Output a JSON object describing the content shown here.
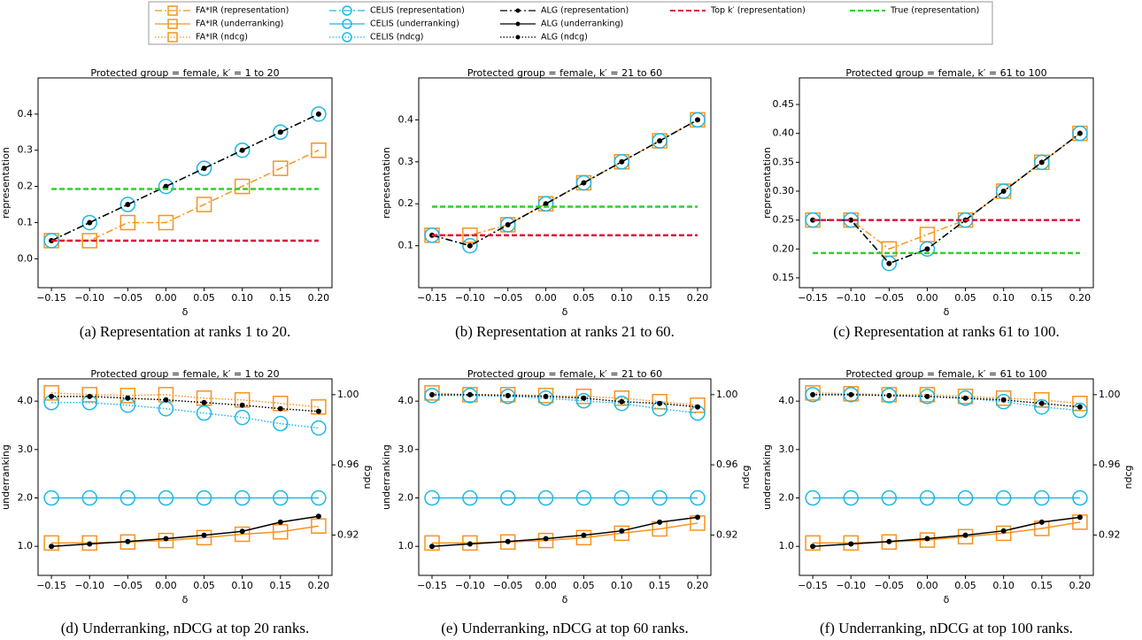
{
  "chart_data": [
    {
      "type": "line",
      "title": "Protected group = female, k′ = 1 to 20",
      "caption": "(a) Representation at ranks 1 to 20.",
      "xlabel": "δ",
      "ylabel": "representation",
      "x": [
        -0.15,
        -0.1,
        -0.05,
        0,
        0.05,
        0.1,
        0.15,
        0.2
      ],
      "xlim": [
        -0.1675,
        0.2175
      ],
      "xticks": [
        {
          "value": -0.15,
          "label": "−0.15"
        },
        {
          "value": -0.1,
          "label": "−0.10"
        },
        {
          "value": -0.05,
          "label": "−0.05"
        },
        {
          "value": 0,
          "label": "0.00"
        },
        0.05,
        {
          "value": 0.1,
          "label": "0.10"
        },
        0.15,
        {
          "value": 0.2,
          "label": "0.20"
        }
      ],
      "ylim": [
        -0.08,
        0.5
      ],
      "yticks": [
        {
          "value": 0,
          "label": "0.0"
        },
        0.1,
        0.2,
        0.3,
        0.4
      ],
      "series": [
        {
          "name": "FA*IR (representation)",
          "color": "#f7931e",
          "linestyle": "dashdot",
          "marker": "square",
          "values": [
            0.05,
            0.05,
            0.1,
            0.1,
            0.15,
            0.2,
            0.25,
            0.3
          ]
        },
        {
          "name": "CELIS (representation)",
          "color": "#1cb8e8",
          "linestyle": "dashdot",
          "marker": "circle",
          "values": [
            0.05,
            0.1,
            0.15,
            0.2,
            0.25,
            0.3,
            0.35,
            0.4
          ]
        },
        {
          "name": "ALG (representation)",
          "color": "#000000",
          "linestyle": "dashdot",
          "marker": "dot",
          "values": [
            0.05,
            0.1,
            0.15,
            0.2,
            0.25,
            0.3,
            0.35,
            0.4
          ]
        },
        {
          "name": "Top k′ (representation)",
          "color": "#dc143c",
          "linestyle": "dashed",
          "marker": "none",
          "values": [
            0.05,
            0.05,
            0.05,
            0.05,
            0.05,
            0.05,
            0.05,
            0.05
          ]
        },
        {
          "name": "True (representation)",
          "color": "#32cd32",
          "linestyle": "dashed",
          "marker": "none",
          "values": [
            0.193,
            0.193,
            0.193,
            0.193,
            0.193,
            0.193,
            0.193,
            0.193
          ]
        }
      ]
    },
    {
      "type": "line",
      "title": "Protected group = female, k′ = 21 to 60",
      "caption": "(b) Representation at ranks 21 to 60.",
      "xlabel": "δ",
      "ylabel": "representation",
      "x": [
        -0.15,
        -0.1,
        -0.05,
        0,
        0.05,
        0.1,
        0.15,
        0.2
      ],
      "xlim": [
        -0.1675,
        0.2175
      ],
      "xticks": [
        {
          "value": -0.15,
          "label": "−0.15"
        },
        {
          "value": -0.1,
          "label": "−0.10"
        },
        {
          "value": -0.05,
          "label": "−0.05"
        },
        {
          "value": 0,
          "label": "0.00"
        },
        0.05,
        {
          "value": 0.1,
          "label": "0.10"
        },
        0.15,
        {
          "value": 0.2,
          "label": "0.20"
        }
      ],
      "ylim": [
        0,
        0.5
      ],
      "yticks": [
        0.1,
        0.2,
        0.3,
        0.4
      ],
      "series": [
        {
          "color": "#f7931e",
          "linestyle": "dashdot",
          "marker": "square",
          "values": [
            0.125,
            0.125,
            0.15,
            0.2,
            0.25,
            0.3,
            0.35,
            0.4
          ]
        },
        {
          "color": "#1cb8e8",
          "linestyle": "dashdot",
          "marker": "circle",
          "values": [
            0.125,
            0.1,
            0.15,
            0.2,
            0.25,
            0.3,
            0.35,
            0.4
          ]
        },
        {
          "color": "#000000",
          "linestyle": "dashdot",
          "marker": "dot",
          "values": [
            0.125,
            0.1,
            0.15,
            0.2,
            0.25,
            0.3,
            0.35,
            0.4
          ]
        },
        {
          "color": "#dc143c",
          "linestyle": "dashed",
          "marker": "none",
          "values": [
            0.125,
            0.125,
            0.125,
            0.125,
            0.125,
            0.125,
            0.125,
            0.125
          ]
        },
        {
          "color": "#32cd32",
          "linestyle": "dashed",
          "marker": "none",
          "values": [
            0.193,
            0.193,
            0.193,
            0.193,
            0.193,
            0.193,
            0.193,
            0.193
          ]
        }
      ]
    },
    {
      "type": "line",
      "title": "Protected group = female, k′ = 61 to 100",
      "caption": "(c) Representation at ranks 61 to 100.",
      "xlabel": "δ",
      "ylabel": "representation",
      "x": [
        -0.15,
        -0.1,
        -0.05,
        0,
        0.05,
        0.1,
        0.15,
        0.2
      ],
      "xlim": [
        -0.1675,
        0.2175
      ],
      "xticks": [
        {
          "value": -0.15,
          "label": "−0.15"
        },
        {
          "value": -0.1,
          "label": "−0.10"
        },
        {
          "value": -0.05,
          "label": "−0.05"
        },
        {
          "value": 0,
          "label": "0.00"
        },
        0.05,
        {
          "value": 0.1,
          "label": "0.10"
        },
        0.15,
        {
          "value": 0.2,
          "label": "0.20"
        }
      ],
      "ylim": [
        0.133,
        0.496
      ],
      "yticks": [
        0.15,
        {
          "value": 0.2,
          "label": "0.20"
        },
        0.25,
        {
          "value": 0.3,
          "label": "0.30"
        },
        0.35,
        {
          "value": 0.4,
          "label": "0.40"
        },
        0.45
      ],
      "series": [
        {
          "color": "#f7931e",
          "linestyle": "dashdot",
          "marker": "square",
          "values": [
            0.25,
            0.25,
            0.2,
            0.225,
            0.25,
            0.3,
            0.35,
            0.4
          ]
        },
        {
          "color": "#1cb8e8",
          "linestyle": "dashdot",
          "marker": "circle",
          "values": [
            0.25,
            0.25,
            0.175,
            0.2,
            0.25,
            0.3,
            0.35,
            0.4
          ]
        },
        {
          "color": "#000000",
          "linestyle": "dashdot",
          "marker": "dot",
          "values": [
            0.25,
            0.25,
            0.175,
            0.2,
            0.25,
            0.3,
            0.35,
            0.4
          ]
        },
        {
          "color": "#dc143c",
          "linestyle": "dashed",
          "marker": "none",
          "values": [
            0.25,
            0.25,
            0.25,
            0.25,
            0.25,
            0.25,
            0.25,
            0.25
          ]
        },
        {
          "color": "#32cd32",
          "linestyle": "dashed",
          "marker": "none",
          "values": [
            0.193,
            0.193,
            0.193,
            0.193,
            0.193,
            0.193,
            0.193,
            0.193
          ]
        }
      ]
    },
    {
      "type": "line",
      "title": "Protected group = female, k′ = 1 to 20",
      "caption": "(d) Underranking, nDCG at top 20 ranks.",
      "xlabel": "δ",
      "ylabel": "underranking",
      "y2label": "ndcg",
      "x": [
        -0.15,
        -0.1,
        -0.05,
        0,
        0.05,
        0.1,
        0.15,
        0.2
      ],
      "xlim": [
        -0.1675,
        0.2175
      ],
      "xticks": [
        {
          "value": -0.15,
          "label": "−0.15"
        },
        {
          "value": -0.1,
          "label": "−0.10"
        },
        {
          "value": -0.05,
          "label": "−0.05"
        },
        {
          "value": 0,
          "label": "0.00"
        },
        0.05,
        {
          "value": 0.1,
          "label": "0.10"
        },
        0.15,
        {
          "value": 0.2,
          "label": "0.20"
        }
      ],
      "ylim": [
        0.4,
        4.46
      ],
      "yticks": [
        {
          "value": 1,
          "label": "1.0"
        },
        {
          "value": 2,
          "label": "2.0"
        },
        {
          "value": 3,
          "label": "3.0"
        },
        {
          "value": 4,
          "label": "4.0"
        }
      ],
      "y2lim": [
        0.897,
        1.009
      ],
      "y2ticks": [
        0.92,
        0.96,
        {
          "value": 1,
          "label": "1.00"
        }
      ],
      "series": [
        {
          "name": "FA*IR (underranking)",
          "color": "#f7931e",
          "linestyle": "solid",
          "marker": "square",
          "values": [
            1.07,
            1.07,
            1.09,
            1.12,
            1.18,
            1.25,
            1.3,
            1.42
          ]
        },
        {
          "name": "CELIS (underranking)",
          "color": "#1cb8e8",
          "linestyle": "solid",
          "marker": "circle",
          "values": [
            2,
            2,
            2,
            2,
            2,
            2,
            2,
            2
          ]
        },
        {
          "name": "ALG (underranking)",
          "color": "#000000",
          "linestyle": "solid",
          "marker": "dot",
          "values": [
            1,
            1.05,
            1.1,
            1.16,
            1.23,
            1.31,
            1.5,
            1.62
          ]
        },
        {
          "name": "FA*IR (ndcg)",
          "color": "#f7931e",
          "linestyle": "dotted",
          "marker": "square",
          "axis": "y2",
          "values": [
            1.001,
            1,
            0.9995,
            1,
            0.998,
            0.997,
            0.995,
            0.993
          ]
        },
        {
          "name": "CELIS (ndcg)",
          "color": "#1cb8e8",
          "linestyle": "dotted",
          "marker": "circle",
          "axis": "y2",
          "values": [
            0.9955,
            0.9955,
            0.994,
            0.992,
            0.9895,
            0.987,
            0.9835,
            0.981
          ]
        },
        {
          "name": "ALG (ndcg)",
          "color": "#000000",
          "linestyle": "dotted",
          "marker": "dot",
          "axis": "y2",
          "values": [
            0.999,
            0.999,
            0.998,
            0.997,
            0.9955,
            0.994,
            0.992,
            0.9905
          ]
        }
      ]
    },
    {
      "type": "line",
      "title": "Protected group = female, k′ = 21 to 60",
      "caption": "(e) Underranking, nDCG at top 60 ranks.",
      "xlabel": "δ",
      "ylabel": "underranking",
      "y2label": "ndcg",
      "x": [
        -0.15,
        -0.1,
        -0.05,
        0,
        0.05,
        0.1,
        0.15,
        0.2
      ],
      "xlim": [
        -0.1675,
        0.2175
      ],
      "xticks": [
        {
          "value": -0.15,
          "label": "−0.15"
        },
        {
          "value": -0.1,
          "label": "−0.10"
        },
        {
          "value": -0.05,
          "label": "−0.05"
        },
        {
          "value": 0,
          "label": "0.00"
        },
        0.05,
        {
          "value": 0.1,
          "label": "0.10"
        },
        0.15,
        {
          "value": 0.2,
          "label": "0.20"
        }
      ],
      "ylim": [
        0.4,
        4.46
      ],
      "yticks": [
        {
          "value": 1,
          "label": "1.0"
        },
        {
          "value": 2,
          "label": "2.0"
        },
        {
          "value": 3,
          "label": "3.0"
        },
        {
          "value": 4,
          "label": "4.0"
        }
      ],
      "y2lim": [
        0.897,
        1.009
      ],
      "y2ticks": [
        0.92,
        0.96,
        {
          "value": 1,
          "label": "1.00"
        }
      ],
      "series": [
        {
          "color": "#f7931e",
          "linestyle": "solid",
          "marker": "square",
          "values": [
            1.07,
            1.07,
            1.09,
            1.12,
            1.18,
            1.27,
            1.36,
            1.48
          ]
        },
        {
          "color": "#1cb8e8",
          "linestyle": "solid",
          "marker": "circle",
          "values": [
            2,
            2,
            2,
            2,
            2,
            2,
            2,
            2
          ]
        },
        {
          "color": "#000000",
          "linestyle": "solid",
          "marker": "dot",
          "values": [
            1,
            1.05,
            1.1,
            1.16,
            1.23,
            1.32,
            1.5,
            1.6
          ]
        },
        {
          "color": "#f7931e",
          "linestyle": "dotted",
          "marker": "square",
          "axis": "y2",
          "values": [
            1.001,
            1,
            1,
            0.9995,
            0.999,
            0.998,
            0.996,
            0.994
          ]
        },
        {
          "color": "#1cb8e8",
          "linestyle": "dotted",
          "marker": "circle",
          "axis": "y2",
          "values": [
            0.9995,
            0.9995,
            0.999,
            0.998,
            0.9965,
            0.995,
            0.992,
            0.9895
          ]
        },
        {
          "color": "#000000",
          "linestyle": "dotted",
          "marker": "dot",
          "axis": "y2",
          "values": [
            1,
            1,
            0.9995,
            0.999,
            0.998,
            0.996,
            0.995,
            0.993
          ]
        }
      ]
    },
    {
      "type": "line",
      "title": "Protected group = female, k′ = 61 to 100",
      "caption": "(f) Underranking, nDCG at top 100 ranks.",
      "xlabel": "δ",
      "ylabel": "underranking",
      "y2label": "ndcg",
      "x": [
        -0.15,
        -0.1,
        -0.05,
        0,
        0.05,
        0.1,
        0.15,
        0.2
      ],
      "xlim": [
        -0.1675,
        0.2175
      ],
      "xticks": [
        {
          "value": -0.15,
          "label": "−0.15"
        },
        {
          "value": -0.1,
          "label": "−0.10"
        },
        {
          "value": -0.05,
          "label": "−0.05"
        },
        {
          "value": 0,
          "label": "0.00"
        },
        0.05,
        {
          "value": 0.1,
          "label": "0.10"
        },
        0.15,
        {
          "value": 0.2,
          "label": "0.20"
        }
      ],
      "ylim": [
        0.4,
        4.46
      ],
      "yticks": [
        {
          "value": 1,
          "label": "1.0"
        },
        {
          "value": 2,
          "label": "2.0"
        },
        {
          "value": 3,
          "label": "3.0"
        },
        {
          "value": 4,
          "label": "4.0"
        }
      ],
      "y2lim": [
        0.897,
        1.009
      ],
      "y2ticks": [
        0.92,
        0.96,
        {
          "value": 1,
          "label": "1.00"
        }
      ],
      "series": [
        {
          "color": "#f7931e",
          "linestyle": "solid",
          "marker": "square",
          "values": [
            1.07,
            1.07,
            1.09,
            1.13,
            1.2,
            1.27,
            1.37,
            1.5
          ]
        },
        {
          "color": "#1cb8e8",
          "linestyle": "solid",
          "marker": "circle",
          "values": [
            2,
            2,
            2,
            2,
            2,
            2,
            2,
            2
          ]
        },
        {
          "color": "#000000",
          "linestyle": "solid",
          "marker": "dot",
          "values": [
            1,
            1.05,
            1.1,
            1.16,
            1.23,
            1.32,
            1.5,
            1.6
          ]
        },
        {
          "color": "#f7931e",
          "linestyle": "dotted",
          "marker": "square",
          "axis": "y2",
          "values": [
            1.001,
            1.0005,
            1,
            1,
            0.999,
            0.998,
            0.997,
            0.995
          ]
        },
        {
          "color": "#1cb8e8",
          "linestyle": "dotted",
          "marker": "circle",
          "axis": "y2",
          "values": [
            1,
            1,
            0.9995,
            0.999,
            0.998,
            0.996,
            0.993,
            0.991
          ]
        },
        {
          "color": "#000000",
          "linestyle": "dotted",
          "marker": "dot",
          "axis": "y2",
          "values": [
            1,
            1,
            0.9995,
            0.999,
            0.998,
            0.997,
            0.995,
            0.993
          ]
        }
      ]
    }
  ]
}
